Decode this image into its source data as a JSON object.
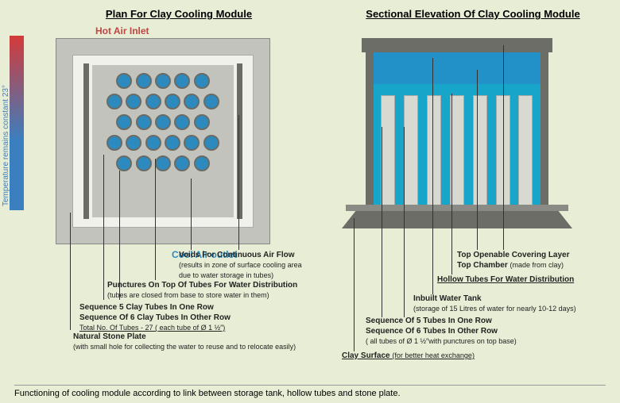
{
  "titles": {
    "left": "Plan  For Clay Cooling  Module",
    "right": "Sectional Elevation Of Clay Cooling Module"
  },
  "plan": {
    "hot_label": "Hot  Air Inlet",
    "cool_label": "Cool  Air outlet",
    "tube_color": "#2c8abf",
    "frame_color": "#c2c3bc",
    "inner_color": "#f0f1ea",
    "bar_color": "#6a6b65",
    "rows": [
      5,
      6,
      5,
      6,
      5
    ],
    "tube_total_note": "Total No. Of Tubes - 27  ( each tube of Ø 1 ½″)"
  },
  "section": {
    "top_color": "#6c6d67",
    "chamber_color": "#2191c8",
    "tank_color": "#17a6c9",
    "tube_color": "#d8d9d0",
    "tube_count": 7
  },
  "temp_bar": {
    "label": "Temperature remains constant  23°",
    "top_color": "#d43a3a",
    "bottom_color": "#3a7fc0"
  },
  "annotations_left": {
    "voids_t": "Voids For Continuous Air Flow",
    "voids_s": "(results in zone of surface cooling area due to water storage in tubes)",
    "punct_t": "Punctures On Top Of Tubes For Water Distribution",
    "punct_s": "(tubes are closed from base to store water in them)",
    "seq_t1": "Sequence  5 Clay Tubes In One Row",
    "seq_t2": "Sequence Of 6 Clay Tubes In Other Row",
    "stone_t": "Natural Stone Plate",
    "stone_s": "(with small hole for collecting the water to reuse and to relocate easily)"
  },
  "annotations_right": {
    "top_open": "Top Openable Covering Layer",
    "top_chamber_t": "Top Chamber",
    "top_chamber_s": "(made from clay)",
    "hollow": "Hollow Tubes For Water Distribution",
    "tank_t": "Inbuilt Water  Tank",
    "tank_s": "(storage of 15 Litres of water for  nearly 10-12 days)",
    "seq_t1": "Sequence Of  5 Tubes In One Row",
    "seq_t2": "Sequence Of  6 Tubes In Other Row",
    "seq_s": "( all tubes of Ø 1 ½″with punctures on top base)",
    "clay_t": "Clay Surface",
    "clay_s": "(for better heat exchange)"
  },
  "caption": "Functioning of cooling module according to link between storage tank, hollow tubes and stone plate."
}
